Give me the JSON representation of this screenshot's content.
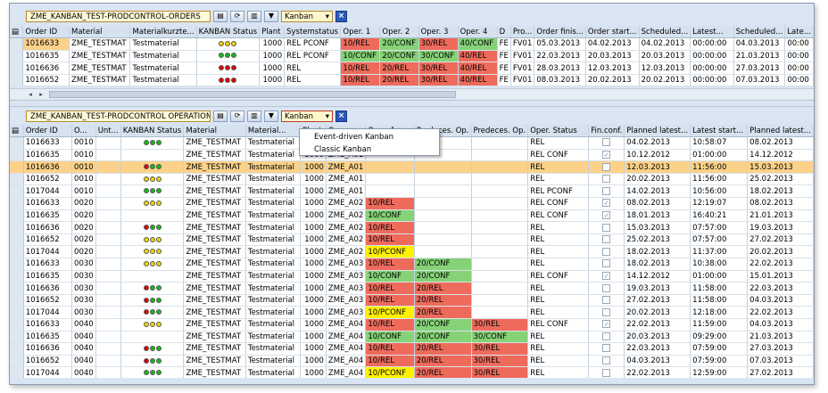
{
  "top": {
    "title": "ZME_KANBAN_TEST-PRODCONTROL-ORDERS",
    "dropdown": "Kanban",
    "headers": [
      "Order ID",
      "Material",
      "Materialkurzte...",
      "KANBAN Status",
      "Plant",
      "Systemstatus",
      "Oper. 1",
      "Oper. 2",
      "Oper. 3",
      "Oper. 4",
      "D",
      "Pro...",
      "Order finis...",
      "Order start...",
      "Scheduled...",
      "Latest...",
      "Scheduled...",
      "Late..."
    ],
    "rows": [
      {
        "id": "1016633",
        "mat": "ZME_TESTMAT",
        "short": "Testmaterial",
        "lights": "yyy",
        "plant": "1000",
        "sys": "REL PCONF",
        "o1": "10/REL",
        "o1c": "red",
        "o2": "20/CONF",
        "o2c": "grn",
        "o3": "30/REL",
        "o3c": "red",
        "o4": "40/CONF",
        "o4c": "grn",
        "d": "FE",
        "pro": "FV01",
        "fin": "05.03.2013",
        "start": "04.02.2013",
        "sched": "04.02.2013",
        "latest": "00:00:00",
        "sched2": "04.03.2013",
        "late": "00:00"
      },
      {
        "id": "1016635",
        "mat": "ZME_TESTMAT",
        "short": "Testmaterial",
        "lights": "ggg",
        "plant": "1000",
        "sys": "REL PCONF",
        "o1": "10/CONF",
        "o1c": "grn",
        "o2": "20/CONF",
        "o2c": "grn",
        "o3": "30/CONF",
        "o3c": "grn",
        "o4": "40/REL",
        "o4c": "red",
        "d": "FE",
        "pro": "FV01",
        "fin": "22.03.2013",
        "start": "20.03.2013",
        "sched": "20.03.2013",
        "latest": "00:00:00",
        "sched2": "21.03.2013",
        "late": "00:00"
      },
      {
        "id": "1016636",
        "mat": "ZME_TESTMAT",
        "short": "Testmaterial",
        "lights": "rrr",
        "plant": "1000",
        "sys": "REL",
        "o1": "10/REL",
        "o1c": "red",
        "o2": "20/REL",
        "o2c": "red",
        "o3": "30/REL",
        "o3c": "red",
        "o4": "40/REL",
        "o4c": "red",
        "d": "FE",
        "pro": "FV01",
        "fin": "28.03.2013",
        "start": "12.03.2013",
        "sched": "12.03.2013",
        "latest": "00:00:00",
        "sched2": "27.03.2013",
        "late": "00:00"
      },
      {
        "id": "1016652",
        "mat": "ZME_TESTMAT",
        "short": "Testmaterial",
        "lights": "rrr",
        "plant": "1000",
        "sys": "REL",
        "o1": "10/REL",
        "o1c": "red",
        "o2": "20/REL",
        "o2c": "red",
        "o3": "30/REL",
        "o3c": "red",
        "o4": "40/REL",
        "o4c": "red",
        "d": "FE",
        "pro": "FV01",
        "fin": "08.03.2013",
        "start": "20.02.2013",
        "sched": "20.02.2013",
        "latest": "00:00:00",
        "sched2": "07.03.2013",
        "late": "00:00"
      }
    ]
  },
  "bottom": {
    "title": "ZME_KANBAN_TEST-PRODCONTROL OPERATIONS",
    "dropdown": "Kanban",
    "menu": [
      "Event-driven Kanban",
      "Classic Kanban"
    ],
    "headers": [
      "Order ID",
      "O...",
      "Unt...",
      "KANBAN Status",
      "Material",
      "Material...",
      "Plant",
      "Op...",
      "Oper. 1",
      "Predeces. Op.",
      "Predeces. Op.",
      "Oper. Status",
      "Fin.conf.",
      "Planned latest...",
      "Latest start...",
      "Planned latest..."
    ],
    "rows": [
      {
        "id": "1016633",
        "o": "0010",
        "lights": "ggg",
        "mat": "ZME_TESTMAT",
        "m2": "Testmaterial",
        "plant": "1000",
        "op": "ZME_A01",
        "c1": "",
        "c1c": "",
        "p1": "",
        "p1c": "",
        "p2": "",
        "p2c": "",
        "st": "REL",
        "fin": false,
        "pl": "04.02.2013",
        "ls": "10:58:07",
        "pl2": "08.02.2013"
      },
      {
        "id": "1016635",
        "o": "0010",
        "lights": "",
        "mat": "ZME_TESTMAT",
        "m2": "Testmaterial",
        "plant": "1000",
        "op": "ZME_A01",
        "c1": "",
        "c1c": "",
        "p1": "",
        "p1c": "",
        "p2": "",
        "p2c": "",
        "st": "REL CONF",
        "fin": true,
        "pl": "10.12.2012",
        "ls": "01:00:00",
        "pl2": "14.12.2012"
      },
      {
        "id": "1016636",
        "o": "0010",
        "lights": "rgg",
        "mat": "ZME_TESTMAT",
        "m2": "Testmaterial",
        "plant": "1000",
        "op": "ZME_A01",
        "c1": "",
        "c1c": "",
        "p1": "",
        "p1c": "",
        "p2": "",
        "p2c": "",
        "st": "REL",
        "fin": false,
        "pl": "12.03.2013",
        "ls": "11:56:00",
        "pl2": "15.03.2013",
        "hl": true
      },
      {
        "id": "1016652",
        "o": "0010",
        "lights": "yyy",
        "mat": "ZME_TESTMAT",
        "m2": "Testmaterial",
        "plant": "1000",
        "op": "ZME_A01",
        "c1": "",
        "c1c": "",
        "p1": "",
        "p1c": "",
        "p2": "",
        "p2c": "",
        "st": "REL",
        "fin": false,
        "pl": "20.02.2013",
        "ls": "11:56:00",
        "pl2": "25.02.2013"
      },
      {
        "id": "1017044",
        "o": "0010",
        "lights": "ggg",
        "mat": "ZME_TESTMAT",
        "m2": "Testmaterial",
        "plant": "1000",
        "op": "ZME_A01",
        "c1": "",
        "c1c": "",
        "p1": "",
        "p1c": "",
        "p2": "",
        "p2c": "",
        "st": "REL PCONF",
        "fin": false,
        "pl": "14.02.2013",
        "ls": "10:56:00",
        "pl2": "18.02.2013"
      },
      {
        "id": "1016633",
        "o": "0020",
        "lights": "yyy",
        "mat": "ZME_TESTMAT",
        "m2": "Testmaterial",
        "plant": "1000",
        "op": "ZME_A02",
        "c1": "10/REL",
        "c1c": "red",
        "p1": "",
        "p1c": "",
        "p2": "",
        "p2c": "",
        "st": "REL CONF",
        "fin": true,
        "pl": "08.02.2013",
        "ls": "12:19:07",
        "pl2": "08.02.2013"
      },
      {
        "id": "1016635",
        "o": "0020",
        "lights": "",
        "mat": "ZME_TESTMAT",
        "m2": "Testmaterial",
        "plant": "1000",
        "op": "ZME_A02",
        "c1": "10/CONF",
        "c1c": "grn",
        "p1": "",
        "p1c": "",
        "p2": "",
        "p2c": "",
        "st": "REL CONF",
        "fin": true,
        "pl": "18.01.2013",
        "ls": "16:40:21",
        "pl2": "21.01.2013"
      },
      {
        "id": "1016636",
        "o": "0020",
        "lights": "rgg",
        "mat": "ZME_TESTMAT",
        "m2": "Testmaterial",
        "plant": "1000",
        "op": "ZME_A02",
        "c1": "10/REL",
        "c1c": "red",
        "p1": "",
        "p1c": "",
        "p2": "",
        "p2c": "",
        "st": "REL",
        "fin": false,
        "pl": "15.03.2013",
        "ls": "07:57:00",
        "pl2": "19.03.2013"
      },
      {
        "id": "1016652",
        "o": "0020",
        "lights": "yyy",
        "mat": "ZME_TESTMAT",
        "m2": "Testmaterial",
        "plant": "1000",
        "op": "ZME_A02",
        "c1": "10/REL",
        "c1c": "red",
        "p1": "",
        "p1c": "",
        "p2": "",
        "p2c": "",
        "st": "REL",
        "fin": false,
        "pl": "25.02.2013",
        "ls": "07:57:00",
        "pl2": "27.02.2013"
      },
      {
        "id": "1017044",
        "o": "0020",
        "lights": "yyy",
        "mat": "ZME_TESTMAT",
        "m2": "Testmaterial",
        "plant": "1000",
        "op": "ZME_A02",
        "c1": "10/PCONF",
        "c1c": "yel",
        "p1": "",
        "p1c": "",
        "p2": "",
        "p2c": "",
        "st": "REL",
        "fin": false,
        "pl": "18.02.2013",
        "ls": "11:37:00",
        "pl2": "20.02.2013"
      },
      {
        "id": "1016633",
        "o": "0030",
        "lights": "yyy",
        "mat": "ZME_TESTMAT",
        "m2": "Testmaterial",
        "plant": "1000",
        "op": "ZME_A03",
        "c1": "10/REL",
        "c1c": "red",
        "p1": "20/CONF",
        "p1c": "grn",
        "p2": "",
        "p2c": "",
        "st": "REL",
        "fin": false,
        "pl": "18.02.2013",
        "ls": "10:38:00",
        "pl2": "22.02.2013"
      },
      {
        "id": "1016635",
        "o": "0030",
        "lights": "",
        "mat": "ZME_TESTMAT",
        "m2": "Testmaterial",
        "plant": "1000",
        "op": "ZME_A03",
        "c1": "10/CONF",
        "c1c": "grn",
        "p1": "20/CONF",
        "p1c": "grn",
        "p2": "",
        "p2c": "",
        "st": "REL CONF",
        "fin": true,
        "pl": "14.12.2012",
        "ls": "01:00:00",
        "pl2": "15.01.2013"
      },
      {
        "id": "1016636",
        "o": "0030",
        "lights": "rgg",
        "mat": "ZME_TESTMAT",
        "m2": "Testmaterial",
        "plant": "1000",
        "op": "ZME_A03",
        "c1": "10/REL",
        "c1c": "red",
        "p1": "20/REL",
        "p1c": "red",
        "p2": "",
        "p2c": "",
        "st": "REL",
        "fin": false,
        "pl": "19.03.2013",
        "ls": "11:58:00",
        "pl2": "22.03.2013"
      },
      {
        "id": "1016652",
        "o": "0030",
        "lights": "rgg",
        "mat": "ZME_TESTMAT",
        "m2": "Testmaterial",
        "plant": "1000",
        "op": "ZME_A03",
        "c1": "10/REL",
        "c1c": "red",
        "p1": "20/REL",
        "p1c": "red",
        "p2": "",
        "p2c": "",
        "st": "REL",
        "fin": false,
        "pl": "27.02.2013",
        "ls": "11:58:00",
        "pl2": "04.03.2013"
      },
      {
        "id": "1017044",
        "o": "0030",
        "lights": "rgg",
        "mat": "ZME_TESTMAT",
        "m2": "Testmaterial",
        "plant": "1000",
        "op": "ZME_A03",
        "c1": "10/PCONF",
        "c1c": "yel",
        "p1": "20/REL",
        "p1c": "red",
        "p2": "",
        "p2c": "",
        "st": "REL",
        "fin": false,
        "pl": "20.02.2013",
        "ls": "12:18:00",
        "pl2": "22.02.2013"
      },
      {
        "id": "1016633",
        "o": "0040",
        "lights": "yyy",
        "mat": "ZME_TESTMAT",
        "m2": "Testmaterial",
        "plant": "1000",
        "op": "ZME_A04",
        "c1": "10/REL",
        "c1c": "red",
        "p1": "20/CONF",
        "p1c": "grn",
        "p2": "30/REL",
        "p2c": "red",
        "st": "REL CONF",
        "fin": true,
        "pl": "22.02.2013",
        "ls": "11:59:00",
        "pl2": "04.03.2013"
      },
      {
        "id": "1016635",
        "o": "0040",
        "lights": "",
        "mat": "ZME_TESTMAT",
        "m2": "Testmaterial",
        "plant": "1000",
        "op": "ZME_A04",
        "c1": "10/CONF",
        "c1c": "grn",
        "p1": "20/CONF",
        "p1c": "grn",
        "p2": "30/CONF",
        "p2c": "grn",
        "st": "REL",
        "fin": false,
        "pl": "20.03.2013",
        "ls": "09:29:00",
        "pl2": "21.03.2013"
      },
      {
        "id": "1016636",
        "o": "0040",
        "lights": "rgg",
        "mat": "ZME_TESTMAT",
        "m2": "Testmaterial",
        "plant": "1000",
        "op": "ZME_A04",
        "c1": "10/REL",
        "c1c": "red",
        "p1": "20/REL",
        "p1c": "red",
        "p2": "30/REL",
        "p2c": "red",
        "st": "REL",
        "fin": false,
        "pl": "22.03.2013",
        "ls": "07:59:00",
        "pl2": "27.03.2013"
      },
      {
        "id": "1016652",
        "o": "0040",
        "lights": "rgg",
        "mat": "ZME_TESTMAT",
        "m2": "Testmaterial",
        "plant": "1000",
        "op": "ZME_A04",
        "c1": "10/REL",
        "c1c": "red",
        "p1": "20/REL",
        "p1c": "red",
        "p2": "30/REL",
        "p2c": "red",
        "st": "REL",
        "fin": false,
        "pl": "04.03.2013",
        "ls": "07:59:00",
        "pl2": "07.03.2013"
      },
      {
        "id": "1017044",
        "o": "0040",
        "lights": "ggg",
        "mat": "ZME_TESTMAT",
        "m2": "Testmaterial",
        "plant": "1000",
        "op": "ZME_A04",
        "c1": "10/PCONF",
        "c1c": "yel",
        "p1": "20/REL",
        "p1c": "red",
        "p2": "30/REL",
        "p2c": "red",
        "st": "REL",
        "fin": false,
        "pl": "22.02.2013",
        "ls": "12:59:00",
        "pl2": "27.02.2013"
      }
    ]
  }
}
